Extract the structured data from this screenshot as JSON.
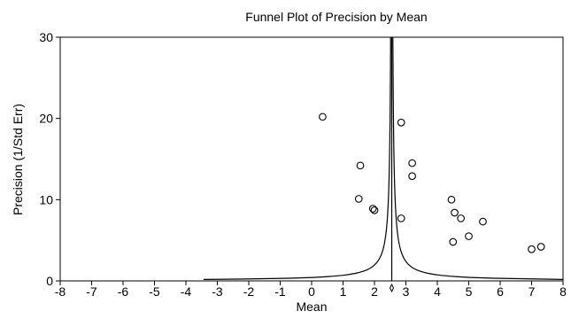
{
  "chart_data": {
    "type": "scatter",
    "title": "Funnel Plot of Precision by Mean",
    "xlabel": "Mean",
    "ylabel": "Precision (1/Std Err)",
    "xlim": [
      -8,
      8
    ],
    "ylim": [
      0,
      30
    ],
    "x_ticks": [
      "-8",
      "-7",
      "-6",
      "-5",
      "-4",
      "-3",
      "-2",
      "-1",
      "0",
      "1",
      "2",
      "3",
      "4",
      "5",
      "6",
      "7",
      "8"
    ],
    "y_ticks": [
      "0",
      "10",
      "20",
      "30"
    ],
    "grid": false,
    "legend": "none",
    "combined_mean": 2.55,
    "funnel_constant": 0.196,
    "series": [
      {
        "points": [
          {
            "x": 0.35,
            "y": 20.2
          },
          {
            "x": 1.55,
            "y": 14.2
          },
          {
            "x": 1.5,
            "y": 10.1
          },
          {
            "x": 1.95,
            "y": 8.9
          },
          {
            "x": 2.0,
            "y": 8.7
          },
          {
            "x": 2.85,
            "y": 19.5
          },
          {
            "x": 2.85,
            "y": 7.7
          },
          {
            "x": 3.2,
            "y": 14.5
          },
          {
            "x": 3.2,
            "y": 12.9
          },
          {
            "x": 4.45,
            "y": 10.0
          },
          {
            "x": 4.55,
            "y": 8.4
          },
          {
            "x": 4.75,
            "y": 7.7
          },
          {
            "x": 4.5,
            "y": 4.8
          },
          {
            "x": 5.0,
            "y": 5.5
          },
          {
            "x": 5.45,
            "y": 7.3
          },
          {
            "x": 7.0,
            "y": 3.9
          },
          {
            "x": 7.3,
            "y": 4.2
          }
        ]
      }
    ]
  }
}
